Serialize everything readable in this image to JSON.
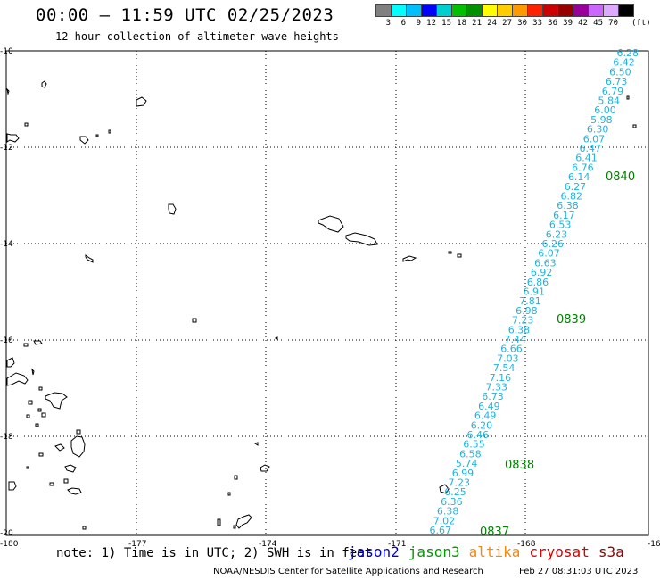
{
  "title": "00:00 – 11:59 UTC 02/25/2023",
  "subtitle": "12 hour collection of altimeter wave heights",
  "legend": {
    "colors": [
      "#808080",
      "#00ffff",
      "#00bfff",
      "#0000ff",
      "#00cfcf",
      "#00c000",
      "#009000",
      "#ffff00",
      "#ffcc00",
      "#ff9900",
      "#ff2200",
      "#cc0000",
      "#990000",
      "#990099",
      "#cc66ff",
      "#ddaaff",
      "#000000"
    ],
    "labels": [
      "3",
      "6",
      "9",
      "12",
      "15",
      "18",
      "21",
      "24",
      "27",
      "30",
      "33",
      "36",
      "39",
      "42",
      "45",
      "70"
    ],
    "unit": "(ft)"
  },
  "axes": {
    "lon_ticks": [
      "-180",
      "-177",
      "-174",
      "-171",
      "-168",
      "-16"
    ],
    "lat_ticks": [
      "-10",
      "-12",
      "-14",
      "-16",
      "-18",
      "-20"
    ]
  },
  "track": {
    "color": "#1eb4e0",
    "values": [
      "6.28",
      "6.42",
      "6.50",
      "6.73",
      "6.79",
      "5.84",
      "6.00",
      "5.98",
      "6.30",
      "6.07",
      "6.47",
      "6.41",
      "6.76",
      "6.14",
      "6.27",
      "6.82",
      "6.38",
      "6.17",
      "6.53",
      "6.23",
      "6.26",
      "6.07",
      "6.63",
      "6.92",
      "6.86",
      "6.91",
      "7.81",
      "6.98",
      "7.23",
      "6.38",
      "7.44",
      "6.66",
      "7.03",
      "7.54",
      "7.16",
      "7.33",
      "6.73",
      "6.49",
      "6.49",
      "6.20",
      "6.46",
      "6.55",
      "6.58",
      "5.74",
      "6.99",
      "7.23",
      "6.25",
      "6.36",
      "6.38",
      "7.02",
      "6.67"
    ],
    "time_labels": [
      "0840",
      "0839",
      "0838",
      "0837"
    ],
    "time_color": "#008000"
  },
  "footer": {
    "note": "note: 1) Time is in UTC; 2) SWH is in feet",
    "satellites": [
      {
        "name": "jason2",
        "color": "#0000cc"
      },
      {
        "name": "jason3",
        "color": "#009900"
      },
      {
        "name": "altika",
        "color": "#ff8800"
      },
      {
        "name": "cryosat",
        "color": "#dd0000"
      },
      {
        "name": "s3a",
        "color": "#990000"
      }
    ],
    "credits": "NOAA/NESDIS Center for Satellite Applications and Research",
    "timestamp": "Feb 27 08:31:03 UTC 2023"
  }
}
